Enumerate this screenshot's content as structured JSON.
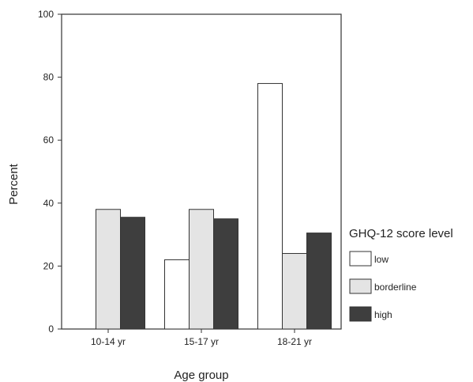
{
  "chart_data": {
    "type": "bar",
    "categories": [
      "10-14 yr",
      "15-17 yr",
      "18-21 yr"
    ],
    "series": [
      {
        "name": "low",
        "values": [
          0,
          22,
          78
        ],
        "color": "#ffffff"
      },
      {
        "name": "borderline",
        "values": [
          38,
          38,
          24
        ],
        "color": "#e4e4e4"
      },
      {
        "name": "high",
        "values": [
          35.5,
          35,
          30.5
        ],
        "color": "#3e3e3e"
      }
    ],
    "xlabel": "Age group",
    "ylabel": "Percent",
    "ylim": [
      0,
      100
    ],
    "yticks": [
      0,
      20,
      40,
      60,
      80,
      100
    ],
    "legend_title": "GHQ-12 score level",
    "legend_position": "right",
    "grid": false
  }
}
